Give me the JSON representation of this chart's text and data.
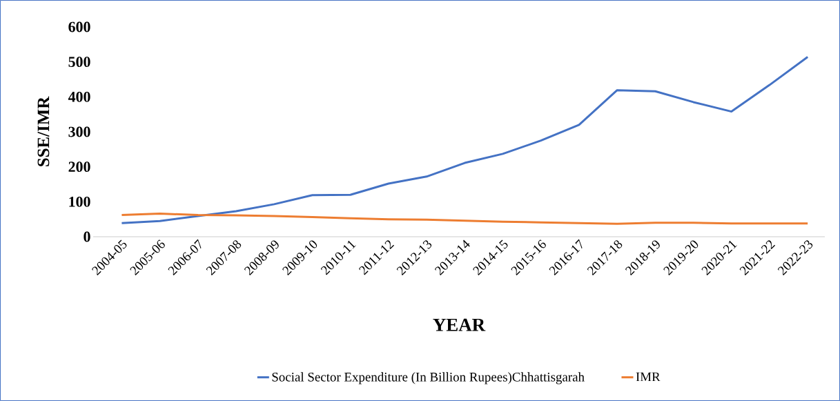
{
  "chart_data": {
    "type": "line",
    "xlabel": "YEAR",
    "ylabel": "SSE/IMR",
    "categories": [
      "2004-05",
      "2005-06",
      "2006-07",
      "2007-08",
      "2008-09",
      "2009-10",
      "2010-11",
      "2011-12",
      "2012-13",
      "2013-14",
      "2014-15",
      "2015-16",
      "2016-17",
      "2017-18",
      "2018-19",
      "2019-20",
      "2020-21",
      "2021-22",
      "2022-23"
    ],
    "series": [
      {
        "name": "Social Sector Expenditure (In Billion Rupees)Chhattisgarah",
        "color": "#4472c4",
        "values": [
          39,
          45,
          59,
          73,
          93,
          119,
          120,
          152,
          172,
          211,
          237,
          275,
          320,
          419,
          416,
          385,
          358,
          434,
          514
        ]
      },
      {
        "name": "IMR",
        "color": "#ed7d31",
        "values": [
          62,
          66,
          62,
          61,
          59,
          56,
          53,
          50,
          49,
          46,
          43,
          41,
          39,
          37,
          40,
          40,
          38,
          38,
          38
        ]
      }
    ],
    "ylim": [
      0,
      600
    ],
    "yticks": [
      0,
      100,
      200,
      300,
      400,
      500,
      600
    ],
    "legend": "bottom"
  }
}
